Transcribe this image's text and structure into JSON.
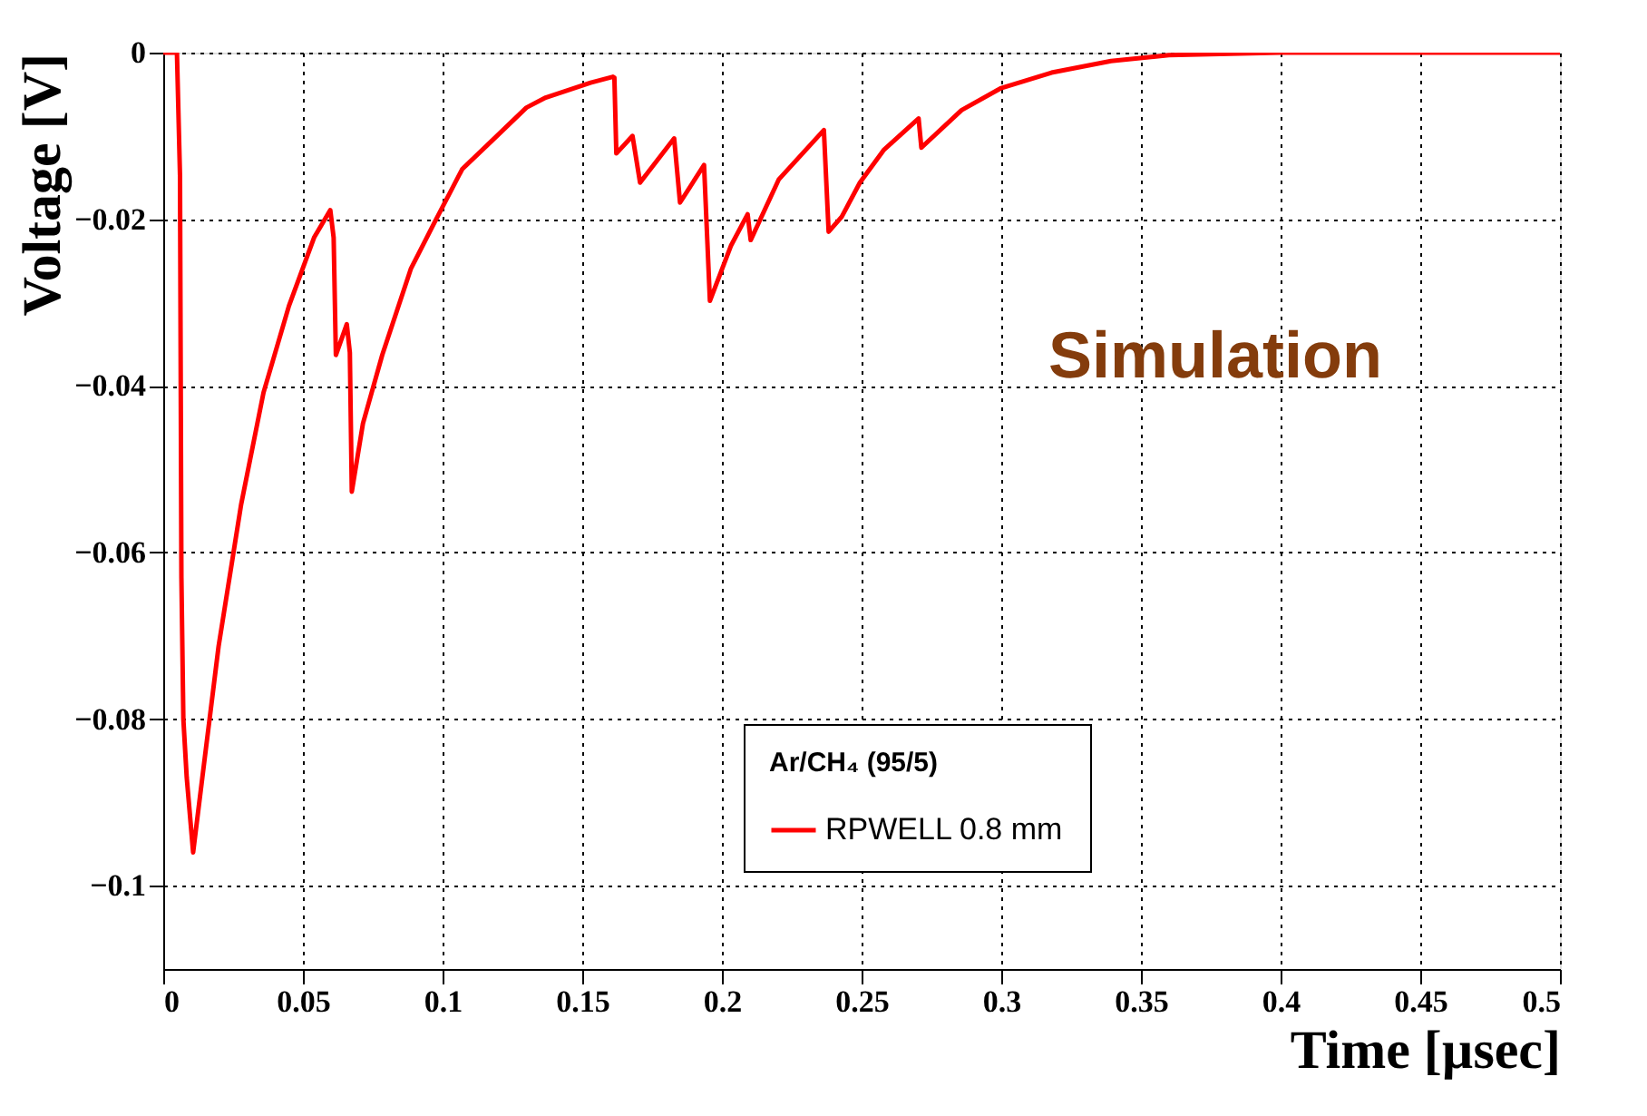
{
  "chart_data": {
    "type": "line",
    "xlabel": "Time [µsec]",
    "ylabel": "Voltage [V]",
    "legend_title": "Ar/CH₄ (95/5)",
    "annotations": [
      "Simulation"
    ],
    "x": [
      0,
      0.0049,
      0.006,
      0.0065,
      0.0072,
      0.0084,
      0.0107,
      0.014,
      0.0198,
      0.0279,
      0.0359,
      0.045,
      0.054,
      0.0598,
      0.061,
      0.0618,
      0.0657,
      0.0668,
      0.0675,
      0.0715,
      0.0784,
      0.0887,
      0.0977,
      0.107,
      0.1185,
      0.13,
      0.1369,
      0.153,
      0.161,
      0.1615,
      0.1622,
      0.168,
      0.1707,
      0.1829,
      0.185,
      0.1936,
      0.1957,
      0.2032,
      0.2092,
      0.2103,
      0.2204,
      0.2365,
      0.2382,
      0.2429,
      0.2494,
      0.2579,
      0.2704,
      0.2714,
      0.2858,
      0.2997,
      0.318,
      0.3393,
      0.36,
      0.4,
      0.5
    ],
    "series": [
      {
        "name": "RPWELL 0.8 mm",
        "color": "#ff0000",
        "marker": "none",
        "line_style": "solid",
        "values": [
          0,
          0,
          -0.0148,
          -0.063,
          -0.08,
          -0.087,
          -0.096,
          -0.087,
          -0.0713,
          -0.0542,
          -0.0408,
          -0.0304,
          -0.0222,
          -0.0189,
          -0.0222,
          -0.0363,
          -0.0326,
          -0.036,
          -0.0527,
          -0.0445,
          -0.0363,
          -0.0259,
          -0.02,
          -0.014,
          -0.0103,
          -0.0066,
          -0.0054,
          -0.0036,
          -0.0029,
          -0.003,
          -0.0121,
          -0.01,
          -0.0156,
          -0.0103,
          -0.018,
          -0.0135,
          -0.0298,
          -0.0232,
          -0.0194,
          -0.0225,
          -0.0152,
          -0.0093,
          -0.0215,
          -0.0197,
          -0.0156,
          -0.0117,
          -0.0079,
          -0.0114,
          -0.0069,
          -0.0043,
          -0.0024,
          -0.001,
          -0.0003,
          0,
          0
        ]
      }
    ],
    "xlim": [
      0,
      0.5
    ],
    "xticks": [
      0,
      0.05,
      0.1,
      0.15,
      0.2,
      0.25,
      0.3,
      0.35,
      0.4,
      0.45,
      0.5
    ],
    "ylim": [
      -0.11,
      0
    ],
    "yticks": [
      -0.1,
      -0.08,
      -0.06,
      -0.04,
      -0.02,
      0
    ],
    "grid": true,
    "legend": "bottom right"
  }
}
